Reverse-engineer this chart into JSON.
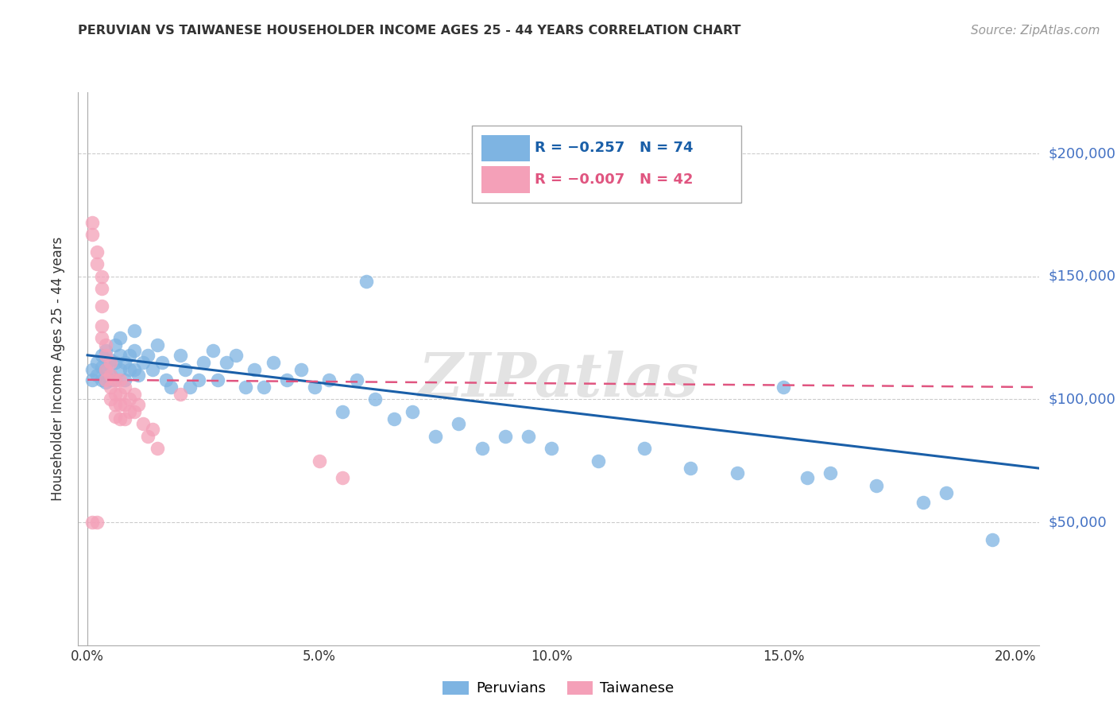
{
  "title": "PERUVIAN VS TAIWANESE HOUSEHOLDER INCOME AGES 25 - 44 YEARS CORRELATION CHART",
  "source": "Source: ZipAtlas.com",
  "ylabel": "Householder Income Ages 25 - 44 years",
  "xlabel_ticks": [
    "0.0%",
    "5.0%",
    "10.0%",
    "15.0%",
    "20.0%"
  ],
  "xlabel_vals": [
    0.0,
    0.05,
    0.1,
    0.15,
    0.2
  ],
  "ytick_vals": [
    50000,
    100000,
    150000,
    200000
  ],
  "ylim": [
    0,
    225000
  ],
  "xlim": [
    -0.002,
    0.205
  ],
  "legend_blue_r": "R = −0.257",
  "legend_blue_n": "N = 74",
  "legend_pink_r": "R = −0.007",
  "legend_pink_n": "N = 42",
  "blue_color": "#7EB4E2",
  "blue_line_color": "#1A5FA8",
  "pink_color": "#F4A0B8",
  "pink_line_color": "#E05580",
  "watermark": "ZIPatlas",
  "peruvians_x": [
    0.001,
    0.001,
    0.002,
    0.002,
    0.003,
    0.003,
    0.003,
    0.004,
    0.004,
    0.004,
    0.005,
    0.005,
    0.005,
    0.006,
    0.006,
    0.006,
    0.007,
    0.007,
    0.007,
    0.008,
    0.008,
    0.009,
    0.009,
    0.01,
    0.01,
    0.01,
    0.011,
    0.012,
    0.013,
    0.014,
    0.015,
    0.016,
    0.017,
    0.018,
    0.02,
    0.021,
    0.022,
    0.024,
    0.025,
    0.027,
    0.028,
    0.03,
    0.032,
    0.034,
    0.036,
    0.038,
    0.04,
    0.043,
    0.046,
    0.049,
    0.052,
    0.055,
    0.058,
    0.062,
    0.066,
    0.07,
    0.075,
    0.08,
    0.085,
    0.09,
    0.06,
    0.095,
    0.1,
    0.11,
    0.12,
    0.13,
    0.14,
    0.155,
    0.17,
    0.185,
    0.15,
    0.16,
    0.18,
    0.195
  ],
  "peruvians_y": [
    112000,
    108000,
    115000,
    110000,
    118000,
    113000,
    108000,
    120000,
    112000,
    107000,
    116000,
    110000,
    108000,
    122000,
    115000,
    108000,
    125000,
    118000,
    112000,
    115000,
    108000,
    118000,
    112000,
    128000,
    120000,
    112000,
    110000,
    115000,
    118000,
    112000,
    122000,
    115000,
    108000,
    105000,
    118000,
    112000,
    105000,
    108000,
    115000,
    120000,
    108000,
    115000,
    118000,
    105000,
    112000,
    105000,
    115000,
    108000,
    112000,
    105000,
    108000,
    95000,
    108000,
    100000,
    92000,
    95000,
    85000,
    90000,
    80000,
    85000,
    148000,
    85000,
    80000,
    75000,
    80000,
    72000,
    70000,
    68000,
    65000,
    62000,
    105000,
    70000,
    58000,
    43000
  ],
  "taiwanese_x": [
    0.001,
    0.001,
    0.001,
    0.002,
    0.002,
    0.002,
    0.003,
    0.003,
    0.003,
    0.003,
    0.003,
    0.004,
    0.004,
    0.004,
    0.004,
    0.005,
    0.005,
    0.005,
    0.005,
    0.006,
    0.006,
    0.006,
    0.006,
    0.007,
    0.007,
    0.007,
    0.007,
    0.008,
    0.008,
    0.008,
    0.009,
    0.009,
    0.01,
    0.01,
    0.011,
    0.012,
    0.013,
    0.014,
    0.015,
    0.02,
    0.05,
    0.055
  ],
  "taiwanese_y": [
    172000,
    167000,
    50000,
    160000,
    155000,
    50000,
    150000,
    145000,
    138000,
    130000,
    125000,
    122000,
    118000,
    112000,
    108000,
    115000,
    110000,
    105000,
    100000,
    108000,
    102000,
    98000,
    93000,
    108000,
    102000,
    98000,
    92000,
    105000,
    98000,
    92000,
    100000,
    95000,
    102000,
    95000,
    98000,
    90000,
    85000,
    88000,
    80000,
    102000,
    75000,
    68000
  ],
  "blue_trendline_x": [
    0.0,
    0.205
  ],
  "blue_trendline_y": [
    118000,
    72000
  ],
  "pink_trendline_x": [
    0.0,
    0.205
  ],
  "pink_trendline_y": [
    108000,
    105000
  ]
}
